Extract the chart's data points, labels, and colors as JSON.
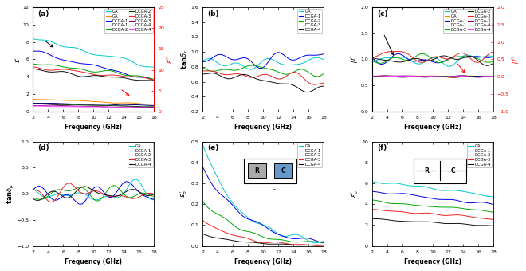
{
  "freq_range": [
    2,
    18
  ],
  "colors_left": [
    "#00cccc",
    "#0000ee",
    "#00aa00",
    "#ee2222",
    "#111111"
  ],
  "colors_right": [
    "#ff8800",
    "#000066",
    "#004400",
    "#880088",
    "#ff44ff"
  ],
  "labels": [
    "GA",
    "DCGA-1",
    "DCGA-2",
    "DCGA-3",
    "DCGA-4"
  ],
  "xlabel": "Frequency (GHz)",
  "bg_color": "#ffffff",
  "lw": 0.7,
  "panel_labels": [
    "(a)",
    "(b)",
    "(c)",
    "(d)",
    "(e)",
    "(f)"
  ]
}
